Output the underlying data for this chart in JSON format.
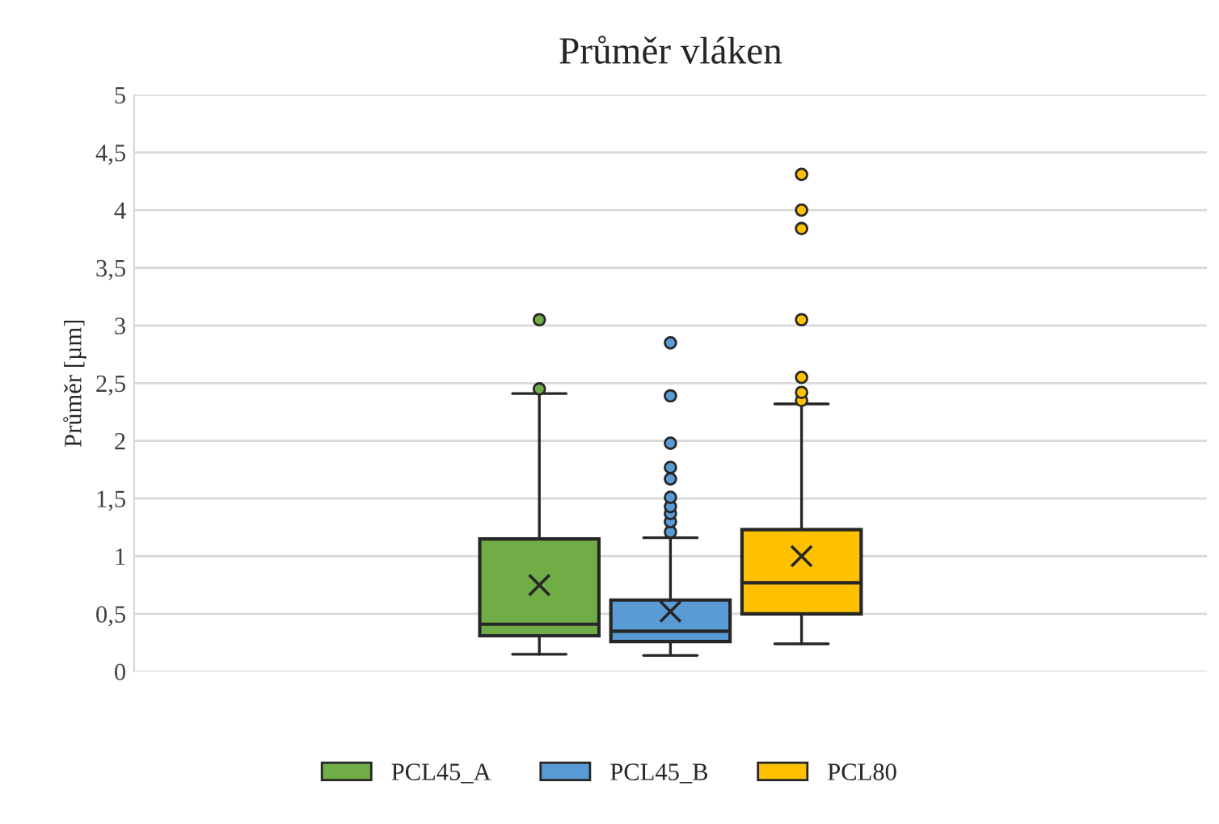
{
  "chart_data": {
    "type": "box",
    "title": "Průměr vláken",
    "ylabel": "Průměr [µm]",
    "categories": [
      null
    ],
    "series": [
      {
        "name": "PCL45_A",
        "color": "#70ad47",
        "boxes": [
          {
            "low": 0.15,
            "q1": 0.31,
            "median": 0.41,
            "q3": 1.15,
            "high": 2.41,
            "mean": 0.75,
            "outliers": [
              2.45,
              3.05
            ]
          }
        ]
      },
      {
        "name": "PCL45_B",
        "color": "#5b9bd5",
        "boxes": [
          {
            "low": 0.14,
            "q1": 0.26,
            "median": 0.35,
            "q3": 0.62,
            "high": 1.16,
            "mean": 0.52,
            "outliers": [
              1.21,
              1.3,
              1.37,
              1.43,
              1.51,
              1.67,
              1.77,
              1.98,
              2.39,
              2.85
            ]
          }
        ]
      },
      {
        "name": "PCL80",
        "color": "#ffc000",
        "boxes": [
          {
            "low": 0.24,
            "q1": 0.5,
            "median": 0.77,
            "q3": 1.23,
            "high": 2.32,
            "mean": 1.0,
            "outliers": [
              2.35,
              2.42,
              2.55,
              3.05,
              3.84,
              4.0,
              4.31
            ]
          }
        ]
      }
    ],
    "ylim": [
      0,
      5
    ],
    "yticks": [
      0,
      {
        "value": 0.5,
        "label": "0,5"
      },
      1,
      {
        "value": 1.5,
        "label": "1,5"
      },
      2,
      {
        "value": 2.5,
        "label": "2,5"
      },
      3,
      {
        "value": 3.5,
        "label": "3,5"
      },
      4,
      {
        "value": 4.5,
        "label": "4,5"
      },
      5
    ],
    "grid": "y",
    "legend": "bottom",
    "marker": "circle"
  }
}
